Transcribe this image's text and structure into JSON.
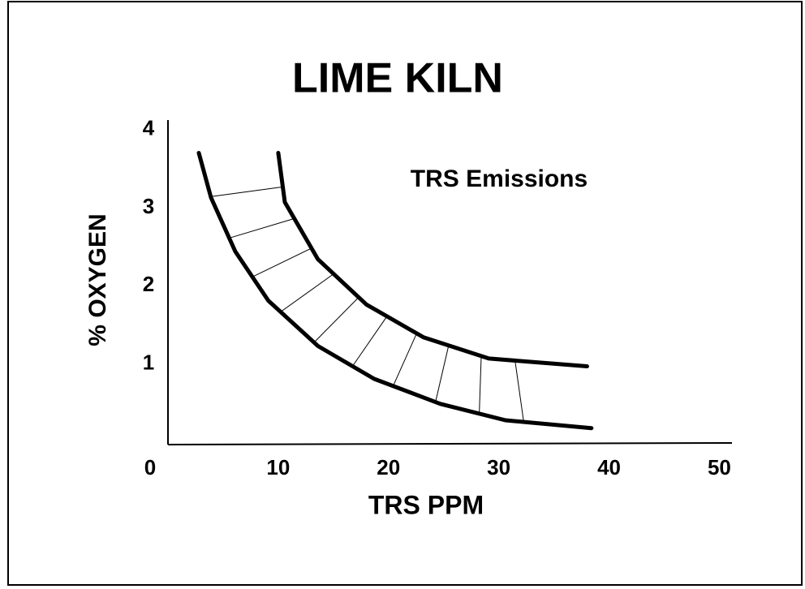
{
  "chart_data": {
    "type": "line",
    "title": "LIME KILN",
    "annotation": "TRS Emissions",
    "x_label": "TRS PPM",
    "y_label": "% OXYGEN",
    "series": [
      {
        "color": "#000000",
        "x": [
          10,
          10.6,
          13.6,
          18,
          23.2,
          29.1,
          38
        ],
        "values": [
          3.7,
          3.07,
          2.34,
          1.76,
          1.34,
          1.07,
          0.97
        ]
      },
      {
        "color": "#000000",
        "x": [
          2.8,
          3.9,
          6.1,
          9.1,
          13.6,
          18.7,
          24.7,
          30.6,
          38.4
        ],
        "values": [
          3.7,
          3.13,
          2.44,
          1.81,
          1.23,
          0.81,
          0.49,
          0.28,
          0.18
        ]
      }
    ],
    "xlim": [
      0,
      51
    ],
    "xticks": [
      0,
      10,
      20,
      30,
      40,
      50
    ],
    "ylim": [
      0,
      4.1
    ],
    "yticks": [
      1,
      2,
      3,
      4
    ]
  }
}
